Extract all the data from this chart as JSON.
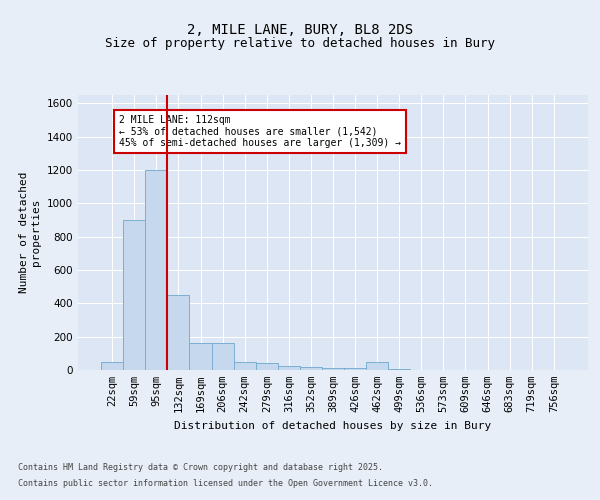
{
  "title1": "2, MILE LANE, BURY, BL8 2DS",
  "title2": "Size of property relative to detached houses in Bury",
  "xlabel": "Distribution of detached houses by size in Bury",
  "ylabel": "Number of detached\nproperties",
  "categories": [
    "22sqm",
    "59sqm",
    "95sqm",
    "132sqm",
    "169sqm",
    "206sqm",
    "242sqm",
    "279sqm",
    "316sqm",
    "352sqm",
    "389sqm",
    "426sqm",
    "462sqm",
    "499sqm",
    "536sqm",
    "573sqm",
    "609sqm",
    "646sqm",
    "683sqm",
    "719sqm",
    "756sqm"
  ],
  "values": [
    50,
    900,
    1200,
    450,
    160,
    160,
    50,
    45,
    25,
    20,
    15,
    10,
    50,
    5,
    2,
    1,
    1,
    0,
    0,
    0,
    0
  ],
  "bar_color": "#c5d8ed",
  "bar_edge_color": "#7aaed0",
  "vline_x_index": 2.5,
  "vline_color": "#cc0000",
  "annotation_text": "2 MILE LANE: 112sqm\n← 53% of detached houses are smaller (1,542)\n45% of semi-detached houses are larger (1,309) →",
  "annotation_box_color": "#cc0000",
  "ylim": [
    0,
    1650
  ],
  "yticks": [
    0,
    200,
    400,
    600,
    800,
    1000,
    1200,
    1400,
    1600
  ],
  "footer1": "Contains HM Land Registry data © Crown copyright and database right 2025.",
  "footer2": "Contains public sector information licensed under the Open Government Licence v3.0.",
  "bg_color": "#e8eef8",
  "plot_bg_color": "#dce6f4",
  "title_fontsize": 10,
  "subtitle_fontsize": 9,
  "axis_label_fontsize": 8,
  "tick_fontsize": 7.5,
  "footer_fontsize": 6
}
